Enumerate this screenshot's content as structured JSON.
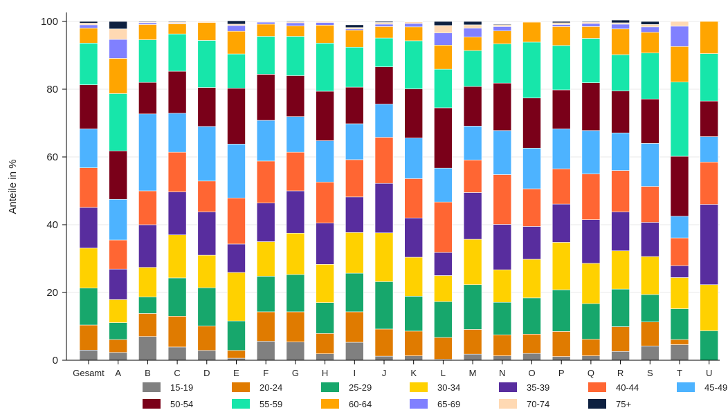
{
  "chart_data": {
    "type": "bar",
    "stacked": true,
    "ylabel": "Anteile in %",
    "ylim": [
      0,
      100
    ],
    "yticks": [
      0,
      20,
      40,
      60,
      80,
      100
    ],
    "grid": true,
    "legend_position": "bottom",
    "categories": [
      "Gesamt",
      "A",
      "B",
      "C",
      "D",
      "E",
      "F",
      "G",
      "H",
      "I",
      "J",
      "K",
      "L",
      "M",
      "N",
      "O",
      "P",
      "Q",
      "R",
      "S",
      "T",
      "U"
    ],
    "series": [
      {
        "name": "15-19",
        "color": "#808080",
        "values": [
          3.0,
          2.3,
          7.0,
          3.9,
          2.9,
          0.6,
          5.6,
          5.4,
          1.9,
          5.3,
          1.2,
          1.3,
          0.3,
          1.8,
          1.3,
          2.0,
          1.1,
          1.3,
          2.6,
          4.2,
          4.6,
          0
        ]
      },
      {
        "name": "20-24",
        "color": "#E07B00",
        "values": [
          7.4,
          3.8,
          6.8,
          9.1,
          7.2,
          2.3,
          8.7,
          8.9,
          6.0,
          9.0,
          8.0,
          7.3,
          6.4,
          7.3,
          6.2,
          5.7,
          7.4,
          4.9,
          7.3,
          7.1,
          1.5,
          0
        ]
      },
      {
        "name": "25-29",
        "color": "#17A76C",
        "values": [
          10.9,
          5.0,
          4.9,
          11.3,
          11.3,
          8.7,
          10.5,
          11.0,
          9.1,
          11.4,
          14.0,
          10.3,
          10.6,
          13.2,
          9.6,
          10.7,
          12.3,
          10.5,
          11.1,
          8.1,
          9.1,
          8.7
        ]
      },
      {
        "name": "30-34",
        "color": "#FFD100",
        "values": [
          11.8,
          6.8,
          8.7,
          12.7,
          9.6,
          14.3,
          10.2,
          12.2,
          11.3,
          12.0,
          14.4,
          11.5,
          7.7,
          13.4,
          9.6,
          11.4,
          14.0,
          11.9,
          11.3,
          11.2,
          9.2,
          13.6
        ]
      },
      {
        "name": "35-39",
        "color": "#582D9E",
        "values": [
          12.0,
          9.0,
          12.6,
          12.7,
          12.8,
          8.4,
          11.4,
          12.5,
          12.2,
          10.5,
          14.6,
          11.6,
          6.8,
          13.8,
          13.4,
          9.7,
          11.3,
          12.9,
          11.5,
          10.1,
          3.5,
          23.7
        ]
      },
      {
        "name": "40-44",
        "color": "#FF6633",
        "values": [
          11.7,
          8.6,
          10.0,
          11.7,
          9.1,
          13.6,
          12.4,
          11.4,
          12.1,
          11.0,
          13.6,
          11.6,
          14.9,
          9.6,
          14.7,
          11.1,
          10.4,
          13.5,
          12.2,
          10.6,
          8.2,
          12.5
        ]
      },
      {
        "name": "45-49",
        "color": "#4DB3FF",
        "values": [
          11.5,
          12.0,
          22.7,
          11.5,
          16.1,
          15.9,
          12.0,
          10.5,
          12.2,
          10.6,
          9.8,
          12.0,
          10.0,
          10.0,
          13.0,
          12.0,
          11.8,
          12.8,
          11.1,
          12.7,
          6.4,
          7.5
        ]
      },
      {
        "name": "50-54",
        "color": "#7A0019",
        "values": [
          13.0,
          14.3,
          9.3,
          12.4,
          11.5,
          16.5,
          13.6,
          12.1,
          14.6,
          10.8,
          11.0,
          14.5,
          17.8,
          11.7,
          14.0,
          14.8,
          11.5,
          14.1,
          12.4,
          13.1,
          17.7,
          10.5
        ]
      },
      {
        "name": "55-59",
        "color": "#17E6AA",
        "values": [
          12.3,
          16.9,
          12.6,
          11.0,
          13.9,
          10.1,
          11.2,
          11.6,
          14.2,
          11.8,
          8.5,
          14.2,
          11.4,
          10.6,
          11.6,
          16.5,
          13.1,
          13.1,
          10.7,
          13.6,
          21.9,
          14.0
        ]
      },
      {
        "name": "60-64",
        "color": "#FFA500",
        "values": [
          4.4,
          10.4,
          4.5,
          3.0,
          5.3,
          6.7,
          3.6,
          3.1,
          5.3,
          5.0,
          3.4,
          4.1,
          7.1,
          4.0,
          3.8,
          5.9,
          5.6,
          3.5,
          7.6,
          6.1,
          10.5,
          9.5
        ]
      },
      {
        "name": "65-69",
        "color": "#8080FF",
        "values": [
          1.0,
          5.6,
          0.5,
          0.2,
          0,
          1.7,
          0.6,
          0.9,
          0.8,
          0.4,
          0.7,
          1.0,
          3.6,
          2.6,
          1.3,
          0,
          0.6,
          0.9,
          1.4,
          1.6,
          6.0,
          0
        ]
      },
      {
        "name": "70-74",
        "color": "#FFD9B3",
        "values": [
          0.5,
          3.1,
          0.2,
          0.3,
          0.3,
          0.4,
          0.2,
          0.3,
          0.3,
          0.4,
          0.5,
          0.5,
          2.2,
          1.0,
          0.5,
          0.2,
          0.5,
          0.4,
          0.4,
          0.7,
          1.4,
          0
        ]
      },
      {
        "name": "75+",
        "color": "#0D2040",
        "values": [
          0.5,
          2.2,
          0.2,
          0.2,
          0,
          1.0,
          0,
          0.2,
          0,
          0.8,
          0.3,
          0.1,
          1.2,
          1.0,
          0.2,
          0,
          0.4,
          0.2,
          0.8,
          0.9,
          0,
          0
        ]
      }
    ]
  }
}
